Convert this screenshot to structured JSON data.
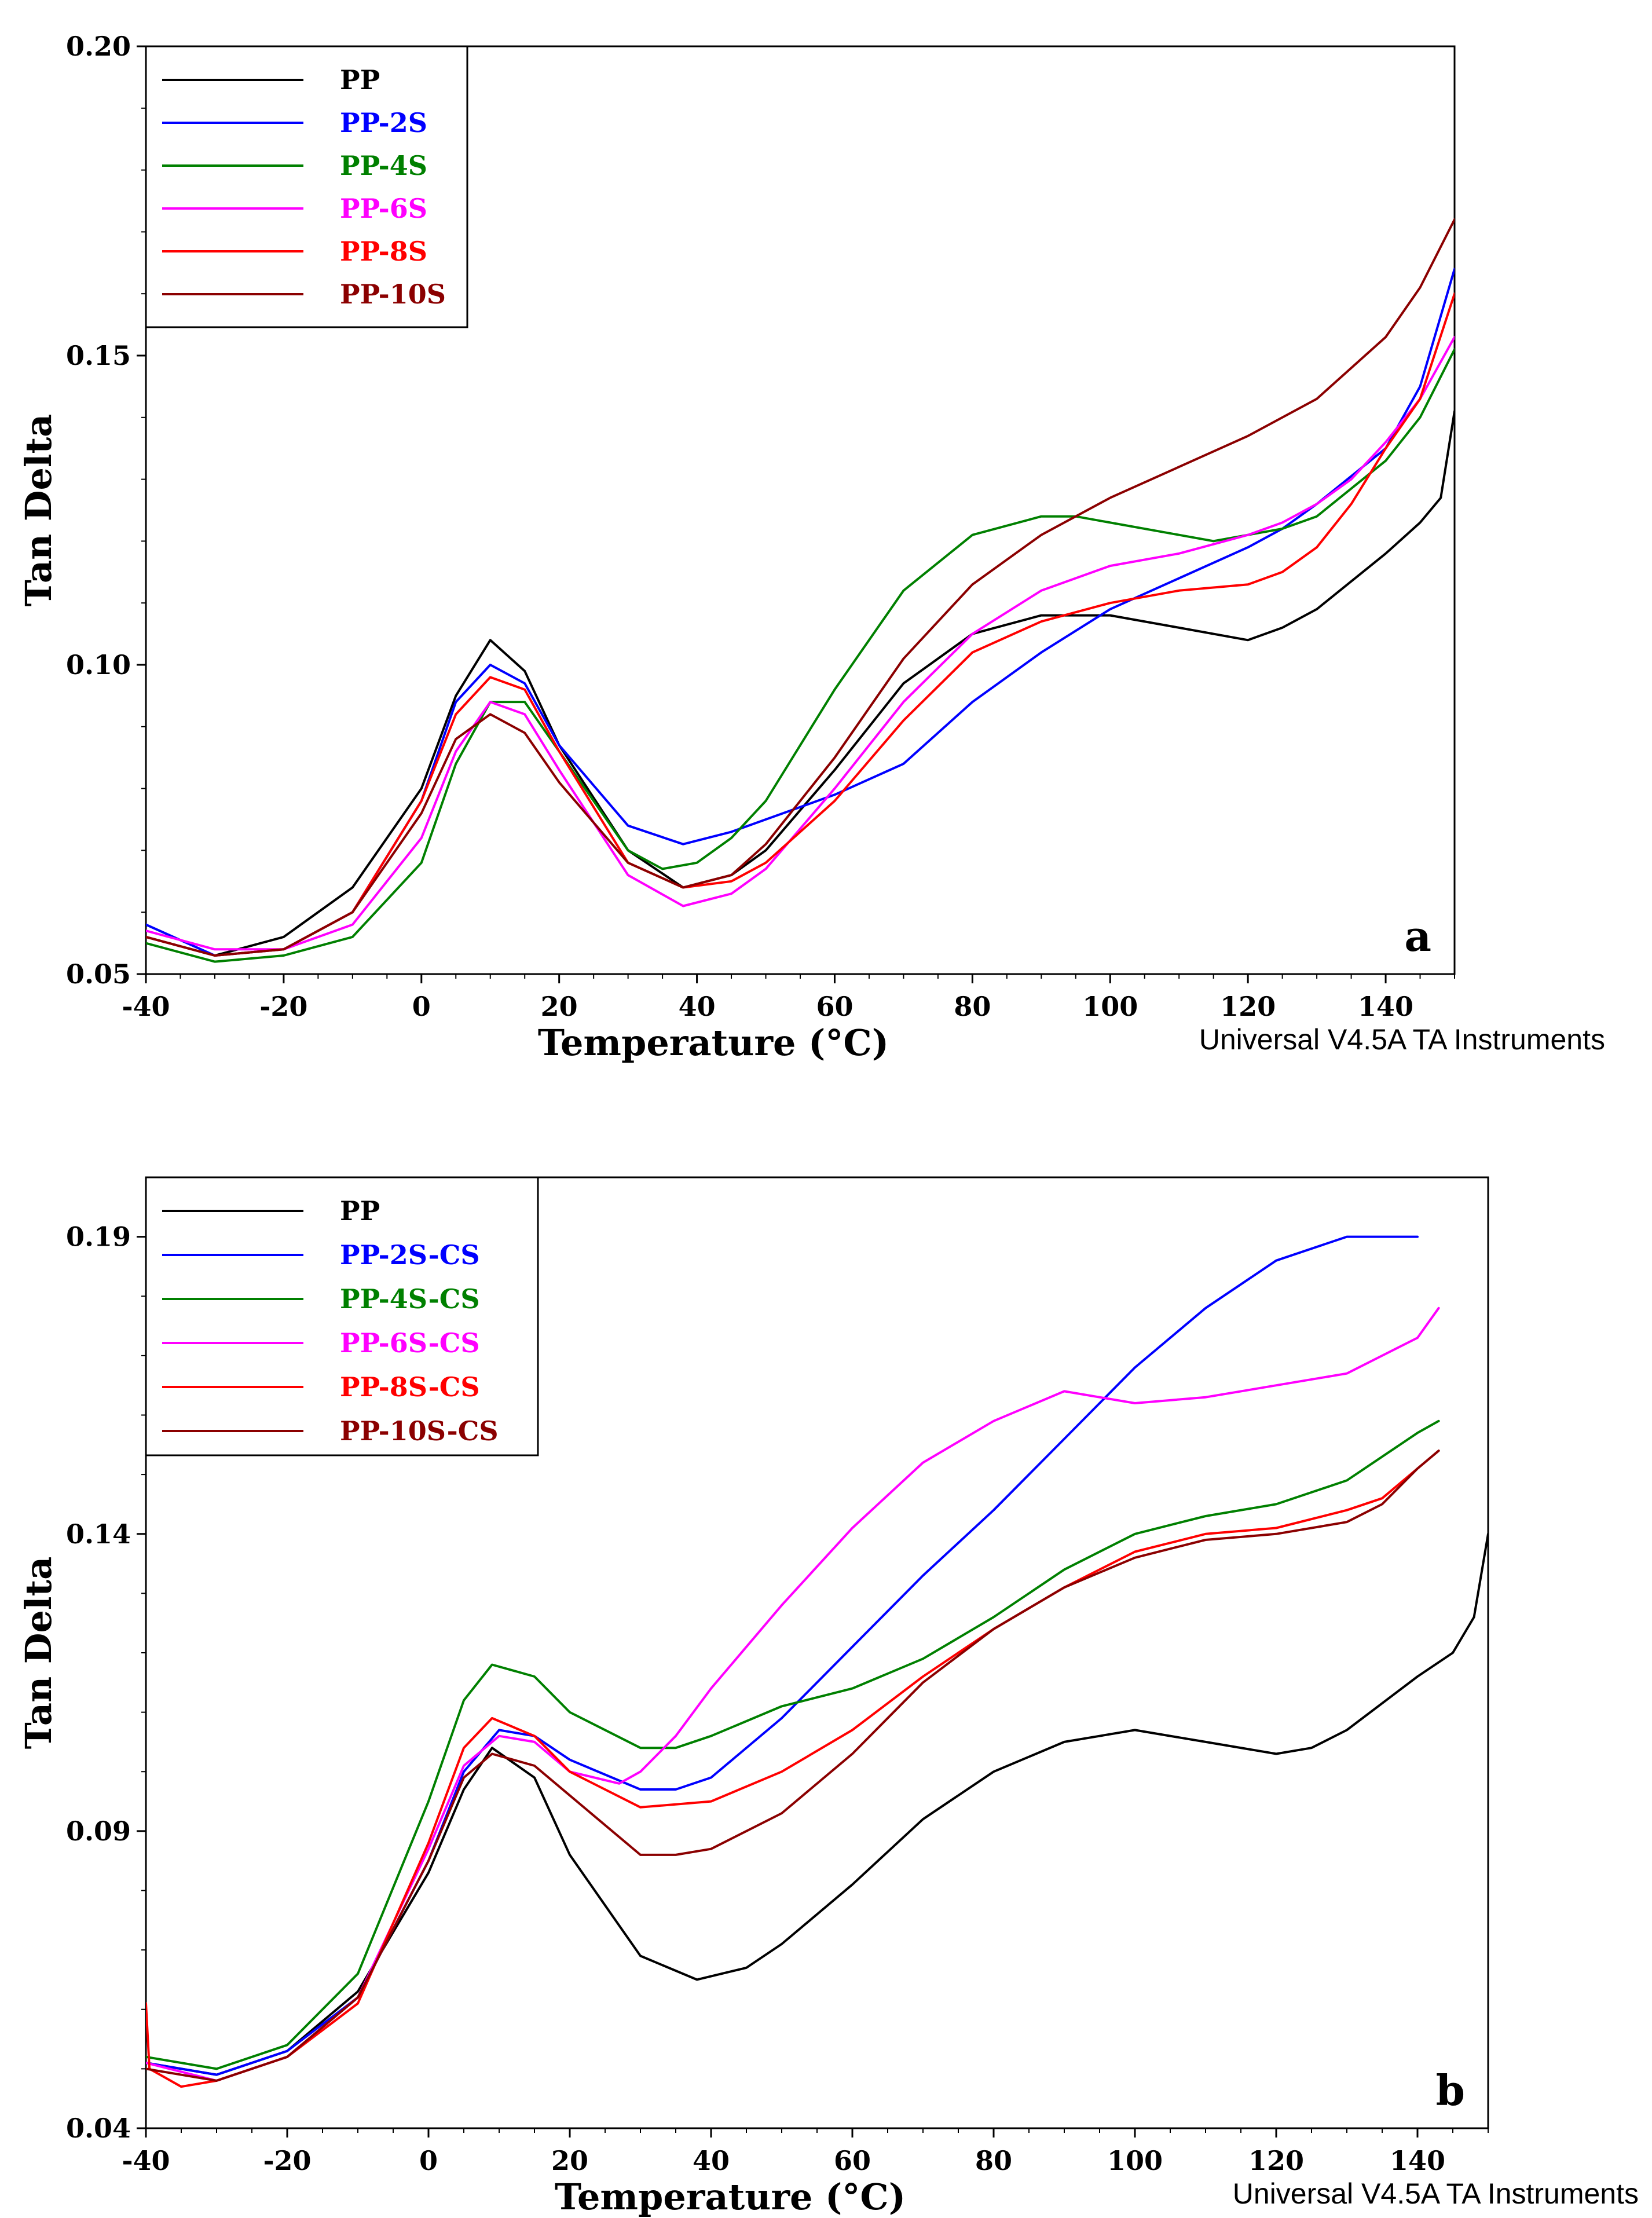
{
  "chart_data": [
    {
      "type": "line",
      "panel_label": "a",
      "xlabel": "Temperature (°C)",
      "ylabel": "Tan Delta",
      "xlim": [
        -40,
        150
      ],
      "ylim": [
        0.05,
        0.2
      ],
      "xticks": [
        -40,
        -20,
        0,
        20,
        40,
        60,
        80,
        100,
        120,
        140
      ],
      "yticks": [
        0.05,
        0.1,
        0.15,
        0.2
      ],
      "ytick_labels": [
        "0.05",
        "0.10",
        "0.15",
        "0.20"
      ],
      "legend_position": "top-left",
      "footer_note": "Universal V4.5A TA Instruments",
      "series": [
        {
          "name": "PP",
          "color": "#000000",
          "x": [
            -40,
            -30,
            -20,
            -10,
            0,
            5,
            10,
            15,
            20,
            30,
            38,
            45,
            50,
            60,
            70,
            80,
            90,
            100,
            110,
            120,
            125,
            130,
            140,
            145,
            148,
            150
          ],
          "y": [
            0.056,
            0.053,
            0.056,
            0.064,
            0.08,
            0.095,
            0.104,
            0.099,
            0.087,
            0.07,
            0.064,
            0.066,
            0.07,
            0.083,
            0.097,
            0.105,
            0.108,
            0.108,
            0.106,
            0.104,
            0.106,
            0.109,
            0.118,
            0.123,
            0.127,
            0.141
          ]
        },
        {
          "name": "PP-2S",
          "color": "#0000FF",
          "x": [
            -40,
            -30,
            -20,
            -10,
            0,
            5,
            10,
            15,
            20,
            30,
            38,
            45,
            50,
            60,
            70,
            80,
            90,
            100,
            110,
            120,
            125,
            130,
            140,
            145,
            150
          ],
          "y": [
            0.058,
            0.053,
            0.054,
            0.06,
            0.078,
            0.094,
            0.1,
            0.097,
            0.087,
            0.074,
            0.071,
            0.073,
            0.075,
            0.079,
            0.084,
            0.094,
            0.102,
            0.109,
            0.114,
            0.119,
            0.122,
            0.126,
            0.135,
            0.145,
            0.164
          ]
        },
        {
          "name": "PP-4S",
          "color": "#008000",
          "x": [
            -40,
            -30,
            -20,
            -10,
            0,
            5,
            10,
            15,
            20,
            30,
            35,
            40,
            45,
            50,
            60,
            70,
            80,
            90,
            95,
            100,
            110,
            115,
            120,
            125,
            130,
            140,
            145,
            150
          ],
          "y": [
            0.055,
            0.052,
            0.053,
            0.056,
            0.068,
            0.084,
            0.094,
            0.094,
            0.086,
            0.07,
            0.067,
            0.068,
            0.072,
            0.078,
            0.096,
            0.112,
            0.121,
            0.124,
            0.124,
            0.123,
            0.121,
            0.12,
            0.121,
            0.122,
            0.124,
            0.133,
            0.14,
            0.151
          ]
        },
        {
          "name": "PP-6S",
          "color": "#FF00FF",
          "x": [
            -40,
            -30,
            -20,
            -10,
            0,
            5,
            10,
            15,
            20,
            30,
            38,
            45,
            50,
            60,
            70,
            80,
            90,
            100,
            110,
            120,
            125,
            130,
            135,
            140,
            145,
            150
          ],
          "y": [
            0.057,
            0.054,
            0.054,
            0.058,
            0.072,
            0.086,
            0.094,
            0.092,
            0.083,
            0.066,
            0.061,
            0.063,
            0.067,
            0.08,
            0.094,
            0.105,
            0.112,
            0.116,
            0.118,
            0.121,
            0.123,
            0.126,
            0.13,
            0.136,
            0.143,
            0.153
          ]
        },
        {
          "name": "PP-8S",
          "color": "#FF0000",
          "x": [
            -40,
            -30,
            -20,
            -10,
            0,
            5,
            10,
            15,
            20,
            30,
            38,
            45,
            50,
            60,
            70,
            80,
            90,
            100,
            110,
            120,
            125,
            130,
            135,
            140,
            145,
            150
          ],
          "y": [
            0.056,
            0.053,
            0.054,
            0.06,
            0.078,
            0.092,
            0.098,
            0.096,
            0.086,
            0.068,
            0.064,
            0.065,
            0.068,
            0.078,
            0.091,
            0.102,
            0.107,
            0.11,
            0.112,
            0.113,
            0.115,
            0.119,
            0.126,
            0.135,
            0.143,
            0.16
          ]
        },
        {
          "name": "PP-10S",
          "color": "#8B0000",
          "x": [
            -40,
            -30,
            -20,
            -10,
            0,
            5,
            10,
            15,
            20,
            30,
            38,
            45,
            50,
            60,
            70,
            80,
            90,
            100,
            110,
            120,
            130,
            140,
            145,
            150
          ],
          "y": [
            0.056,
            0.053,
            0.054,
            0.06,
            0.076,
            0.088,
            0.092,
            0.089,
            0.081,
            0.068,
            0.064,
            0.066,
            0.071,
            0.085,
            0.101,
            0.113,
            0.121,
            0.127,
            0.132,
            0.137,
            0.143,
            0.153,
            0.161,
            0.172
          ]
        }
      ]
    },
    {
      "type": "line",
      "panel_label": "b",
      "xlabel": "Temperature (°C)",
      "ylabel": "Tan Delta",
      "xlim": [
        -40,
        150
      ],
      "ylim": [
        0.04,
        0.2
      ],
      "xticks": [
        -40,
        -20,
        0,
        20,
        40,
        60,
        80,
        100,
        120,
        140
      ],
      "yticks": [
        0.04,
        0.09,
        0.14,
        0.19
      ],
      "ytick_labels": [
        "0.04",
        "0.09",
        "0.14",
        "0.19"
      ],
      "legend_position": "top-left",
      "footer_note": "Universal V4.5A TA Instruments",
      "series": [
        {
          "name": "PP",
          "color": "#000000",
          "x": [
            -40,
            -30,
            -20,
            -10,
            0,
            5,
            9,
            15,
            20,
            30,
            38,
            45,
            50,
            60,
            70,
            80,
            90,
            100,
            110,
            120,
            125,
            130,
            140,
            145,
            148,
            150
          ],
          "y": [
            0.051,
            0.049,
            0.053,
            0.063,
            0.083,
            0.097,
            0.104,
            0.099,
            0.086,
            0.069,
            0.065,
            0.067,
            0.071,
            0.081,
            0.092,
            0.1,
            0.105,
            0.107,
            0.105,
            0.103,
            0.104,
            0.107,
            0.116,
            0.12,
            0.126,
            0.14
          ]
        },
        {
          "name": "PP-2S-CS",
          "color": "#0000FF",
          "x": [
            -40,
            -30,
            -20,
            -10,
            0,
            5,
            10,
            15,
            20,
            30,
            35,
            40,
            50,
            60,
            70,
            80,
            90,
            100,
            110,
            120,
            130,
            135,
            140
          ],
          "y": [
            0.051,
            0.049,
            0.053,
            0.062,
            0.085,
            0.1,
            0.107,
            0.106,
            0.102,
            0.097,
            0.097,
            0.099,
            0.109,
            0.121,
            0.133,
            0.144,
            0.156,
            0.168,
            0.178,
            0.186,
            0.19,
            0.19,
            0.19
          ]
        },
        {
          "name": "PP-4S-CS",
          "color": "#008000",
          "x": [
            -40,
            -30,
            -20,
            -10,
            0,
            5,
            9,
            15,
            20,
            30,
            35,
            40,
            50,
            60,
            70,
            80,
            90,
            100,
            110,
            120,
            130,
            140,
            143
          ],
          "y": [
            0.052,
            0.05,
            0.054,
            0.066,
            0.095,
            0.112,
            0.118,
            0.116,
            0.11,
            0.104,
            0.104,
            0.106,
            0.111,
            0.114,
            0.119,
            0.126,
            0.134,
            0.14,
            0.143,
            0.145,
            0.149,
            0.157,
            0.159
          ]
        },
        {
          "name": "PP-6S-CS",
          "color": "#FF00FF",
          "x": [
            -40,
            -30,
            -20,
            -10,
            0,
            5,
            10,
            15,
            20,
            27,
            30,
            35,
            40,
            50,
            60,
            70,
            80,
            90,
            100,
            110,
            120,
            130,
            135,
            140,
            143
          ],
          "y": [
            0.051,
            0.048,
            0.052,
            0.062,
            0.087,
            0.101,
            0.106,
            0.105,
            0.1,
            0.098,
            0.1,
            0.106,
            0.114,
            0.128,
            0.141,
            0.152,
            0.159,
            0.164,
            0.162,
            0.163,
            0.165,
            0.167,
            0.17,
            0.173,
            0.178
          ]
        },
        {
          "name": "PP-8S-CS",
          "color": "#FF0000",
          "x": [
            -40,
            -39.5,
            -38,
            -35,
            -30,
            -20,
            -10,
            0,
            5,
            9,
            15,
            20,
            30,
            40,
            50,
            60,
            70,
            80,
            90,
            100,
            110,
            120,
            130,
            135,
            140,
            143
          ],
          "y": [
            0.061,
            0.05,
            0.049,
            0.047,
            0.048,
            0.052,
            0.061,
            0.088,
            0.104,
            0.109,
            0.106,
            0.1,
            0.094,
            0.095,
            0.1,
            0.107,
            0.116,
            0.124,
            0.131,
            0.137,
            0.14,
            0.141,
            0.144,
            0.146,
            0.151,
            0.154
          ]
        },
        {
          "name": "PP-10S-CS",
          "color": "#8B0000",
          "x": [
            -40,
            -30,
            -20,
            -10,
            0,
            5,
            9,
            15,
            20,
            30,
            35,
            40,
            50,
            60,
            70,
            80,
            90,
            100,
            110,
            120,
            130,
            135,
            140,
            143
          ],
          "y": [
            0.05,
            0.048,
            0.052,
            0.062,
            0.085,
            0.099,
            0.103,
            0.101,
            0.096,
            0.086,
            0.086,
            0.087,
            0.093,
            0.103,
            0.115,
            0.124,
            0.131,
            0.136,
            0.139,
            0.14,
            0.142,
            0.145,
            0.151,
            0.154
          ]
        }
      ]
    }
  ]
}
